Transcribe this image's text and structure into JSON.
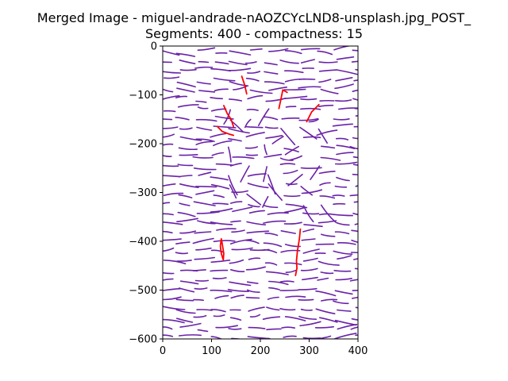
{
  "chart_data": {
    "type": "line",
    "title": "Merged Image - miguel-andrade-nAOZCYcLND8-unsplash.jpg_POST_",
    "subtitle": "Segments: 400 - compactness: 15",
    "xlabel": "",
    "ylabel": "",
    "xlim": [
      0,
      400
    ],
    "ylim": [
      -600,
      0
    ],
    "xticks": [
      0,
      100,
      200,
      300,
      400
    ],
    "yticks": [
      0,
      -100,
      -200,
      -300,
      -400,
      -500,
      -600
    ],
    "grid": false,
    "colors": {
      "boundary": "#6a22a8",
      "highlight": "#ff0000"
    },
    "highlight_series": [
      {
        "x": [
          162,
          168,
          172
        ],
        "y": [
          -62,
          -80,
          -98
        ]
      },
      {
        "x": [
          238,
          242,
          246,
          255
        ],
        "y": [
          -128,
          -110,
          -90,
          -95
        ]
      },
      {
        "x": [
          295,
          300,
          305,
          312,
          320
        ],
        "y": [
          -155,
          -145,
          -135,
          -128,
          -120
        ]
      },
      {
        "x": [
          125,
          132,
          140,
          145
        ],
        "y": [
          -122,
          -138,
          -150,
          -165
        ]
      },
      {
        "x": [
          112,
          122,
          135,
          145
        ],
        "y": [
          -165,
          -175,
          -180,
          -183
        ]
      },
      {
        "x": [
          120,
          118,
          120,
          124,
          125,
          122,
          120
        ],
        "y": [
          -395,
          -410,
          -425,
          -438,
          -425,
          -405,
          -395
        ]
      },
      {
        "x": [
          282,
          280,
          276,
          274,
          275,
          272
        ],
        "y": [
          -375,
          -395,
          -420,
          -440,
          -455,
          -470
        ]
      }
    ]
  }
}
